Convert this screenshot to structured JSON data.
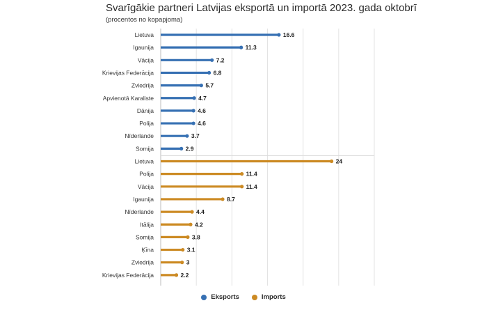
{
  "chart_data": {
    "type": "bar",
    "orientation": "horizontal",
    "title": "Svarīgākie partneri Latvijas eksportā un importā 2023. gada oktobrī",
    "subtitle": "(procentos no kopapjoma)",
    "xlim": [
      0,
      30
    ],
    "grid": true,
    "legend_position": "bottom-center",
    "series": [
      {
        "name": "Eksports",
        "color": "#3670b3",
        "categories": [
          "Lietuva",
          "Igaunija",
          "Vācija",
          "Krievijas Federācija",
          "Zviedrija",
          "Apvienotā Karaliste",
          "Dānija",
          "Polija",
          "Nīderlande",
          "Somija"
        ],
        "values": [
          16.6,
          11.3,
          7.2,
          6.8,
          5.7,
          4.7,
          4.6,
          4.6,
          3.7,
          2.9
        ],
        "value_labels": [
          "16.6",
          "11.3",
          "7.2",
          "6.8",
          "5.7",
          "4.7",
          "4.6",
          "4.6",
          "3.7",
          "2.9"
        ]
      },
      {
        "name": "Imports",
        "color": "#cc8a23",
        "categories": [
          "Lietuva",
          "Polija",
          "Vācija",
          "Igaunija",
          "Nīderlande",
          "Itālija",
          "Somija",
          "Ķīna",
          "Zviedrija",
          "Krievijas Federācija"
        ],
        "values": [
          24,
          11.4,
          11.4,
          8.7,
          4.4,
          4.2,
          3.8,
          3.1,
          3,
          2.2
        ],
        "value_labels": [
          "24",
          "11.4",
          "11.4",
          "8.7",
          "4.4",
          "4.2",
          "3.8",
          "3.1",
          "3",
          "2.2"
        ]
      }
    ]
  }
}
